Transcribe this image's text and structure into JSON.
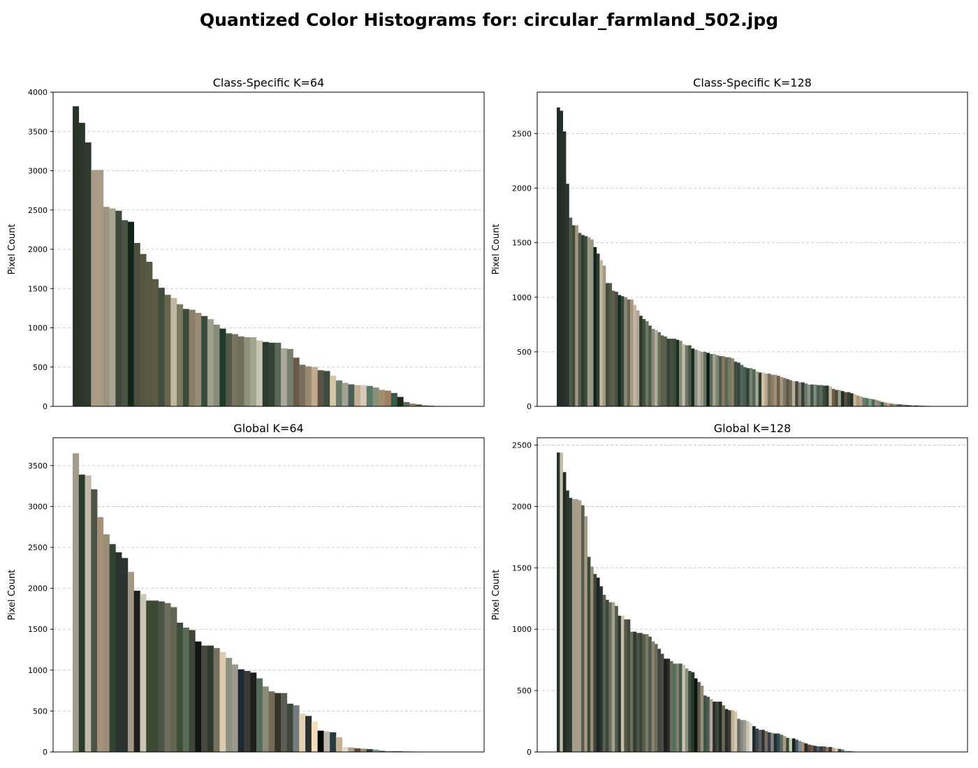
{
  "figure": {
    "title": "Quantized Color Histograms for: circular_farmland_502.jpg"
  },
  "chart_data": [
    {
      "type": "bar",
      "title": "Class-Specific K=64",
      "xlabel": "",
      "ylabel": "Pixel Count",
      "ylim": [
        0,
        4000
      ],
      "yticks": [
        0,
        500,
        1000,
        1500,
        2000,
        2500,
        3000,
        3500,
        4000
      ],
      "xticks_shown": false,
      "grid": "y-dashed",
      "n_bins": 64,
      "values": [
        3820,
        3610,
        3360,
        3010,
        3010,
        2540,
        2520,
        2490,
        2370,
        2350,
        2080,
        1940,
        1840,
        1620,
        1510,
        1420,
        1380,
        1300,
        1240,
        1230,
        1190,
        1150,
        1110,
        1040,
        990,
        930,
        920,
        890,
        880,
        880,
        840,
        820,
        810,
        810,
        740,
        730,
        620,
        530,
        510,
        500,
        460,
        450,
        390,
        330,
        300,
        280,
        270,
        270,
        260,
        240,
        210,
        200,
        170,
        120,
        55,
        35,
        25,
        12,
        8,
        5,
        0,
        0,
        0,
        0
      ],
      "colors": [
        "#27342a",
        "#2a362b",
        "#2f3a2f",
        "#a89c88",
        "#a89c88",
        "#9d9480",
        "#a8a490",
        "#3c4a3a",
        "#4b5440",
        "#12261d",
        "#4f4f3f",
        "#56553f",
        "#56583f",
        "#5c5a45",
        "#3f4e3c",
        "#66664f",
        "#bdb89f",
        "#7a7a62",
        "#3b4a37",
        "#8a8066",
        "#998b73",
        "#384c3c",
        "#a0a090",
        "#8a8a78",
        "#1e3a29",
        "#52594a",
        "#77735f",
        "#6e6e5a",
        "#8f9178",
        "#a0a890",
        "#c8c6b0",
        "#2d3b2e",
        "#334437",
        "#5a6656",
        "#aaa99a",
        "#7a7e6e",
        "#6a5a4a",
        "#7a6e5e",
        "#9a8a74",
        "#c0aa90",
        "#5c5444",
        "#3c4c3c",
        "#d6c6a6",
        "#6a7a6a",
        "#a3a594",
        "#4c5e58",
        "#c4b098",
        "#d8cab8",
        "#5a7a6a",
        "#8a9078",
        "#a48c70",
        "#a08060",
        "#3a5a4a",
        "#1e2a1e",
        "#5a7060",
        "#9a8060",
        "#4a6050",
        "#556a5a",
        "#2a4a3a",
        "#607060",
        "#888888",
        "#999999",
        "#aaaaaa",
        "#bbbbbb"
      ]
    },
    {
      "type": "bar",
      "title": "Class-Specific K=128",
      "xlabel": "",
      "ylabel": "Pixel Count",
      "ylim": [
        0,
        2880
      ],
      "yticks": [
        0,
        500,
        1000,
        1500,
        2000,
        2500
      ],
      "xticks_shown": false,
      "grid": "y-dashed",
      "n_bins": 128,
      "values": [
        2740,
        2710,
        2520,
        2040,
        1730,
        1660,
        1660,
        1590,
        1570,
        1560,
        1550,
        1530,
        1460,
        1400,
        1340,
        1290,
        1130,
        1130,
        1060,
        1050,
        1020,
        1010,
        1000,
        980,
        980,
        930,
        880,
        830,
        800,
        780,
        740,
        710,
        700,
        680,
        650,
        640,
        620,
        620,
        620,
        610,
        600,
        570,
        560,
        560,
        530,
        520,
        510,
        500,
        500,
        490,
        480,
        480,
        470,
        460,
        460,
        450,
        450,
        440,
        410,
        400,
        380,
        360,
        350,
        350,
        340,
        320,
        310,
        310,
        300,
        300,
        290,
        290,
        280,
        270,
        260,
        250,
        240,
        230,
        230,
        220,
        220,
        210,
        200,
        200,
        200,
        195,
        195,
        190,
        190,
        180,
        160,
        150,
        150,
        140,
        130,
        130,
        120,
        110,
        100,
        90,
        80,
        75,
        70,
        65,
        60,
        50,
        40,
        35,
        30,
        25,
        22,
        20,
        18,
        15,
        12,
        10,
        9,
        8,
        7,
        6,
        5,
        4,
        3,
        2,
        1,
        0,
        0,
        0
      ],
      "colors": [
        "#1f2b24",
        "#252f27",
        "#27332a",
        "#2a362c",
        "#4e5a46",
        "#3e4a3a",
        "#a39a86",
        "#57594a",
        "#2e3e33",
        "#3c4b3b",
        "#a19a86",
        "#9a9584",
        "#0f231a",
        "#2b3b30",
        "#c2b8a0",
        "#a49a84",
        "#3c4d3c",
        "#58584a",
        "#5f5f4f",
        "#484f40",
        "#14291f",
        "#34453a",
        "#8e8a78",
        "#6f6652",
        "#a59781",
        "#c4b7a2",
        "#afa792",
        "#2b3a2c",
        "#434f3d",
        "#6d7564",
        "#505b47",
        "#8b8b78",
        "#b2ad9c",
        "#697259",
        "#5e5e4b",
        "#56624f",
        "#354437",
        "#4b4d3a",
        "#3b4c3b",
        "#1a2e22",
        "#888878",
        "#bfbaa6",
        "#6d7462",
        "#4c5846",
        "#162a1f",
        "#8d9081",
        "#b6b4a2",
        "#9c9c8a",
        "#6a7060",
        "#081c14",
        "#5c6a5a",
        "#a1a290",
        "#7e8272",
        "#4d5b4a",
        "#887a62",
        "#5d6650",
        "#6f7b69",
        "#8d7f66",
        "#3e4e40",
        "#38473a",
        "#52665a",
        "#485c50",
        "#2e4236",
        "#74826f",
        "#536553",
        "#a3a895",
        "#2a3b30",
        "#d3c2a0",
        "#b0a694",
        "#7c6e5c",
        "#8c7a64",
        "#9e8f78",
        "#6a5e4e",
        "#a8997f",
        "#7d7565",
        "#5e5848",
        "#6e6e5e",
        "#bbae97",
        "#3d4a3d",
        "#8a8070",
        "#2f4036",
        "#6a7a6a",
        "#8f8f7f",
        "#3e5248",
        "#7e8c7c",
        "#4a5e4e",
        "#5a6a5a",
        "#3a4a3a",
        "#2a3a2e",
        "#c8b89e",
        "#6a6050",
        "#4e4a3a",
        "#a09a8a",
        "#1e2e24",
        "#5a4e3e",
        "#3a3e30",
        "#2a2e24",
        "#cab69a",
        "#a89880",
        "#b6a48a",
        "#6a7e70",
        "#5a7266",
        "#8a9a8c",
        "#4a6a5a",
        "#9a9078",
        "#7a8a7a",
        "#3a5a4a",
        "#a08a70",
        "#c0a080",
        "#8a7060",
        "#9e9888",
        "#5e7064",
        "#4a5a50",
        "#6e8270",
        "#3a4e42",
        "#2a3e34",
        "#7a9080",
        "#1e3428",
        "#506858",
        "#3e564a",
        "#607a6a",
        "#2e463a",
        "#4e6a5a",
        "#365244",
        "#5a7868",
        "#8a8a8a",
        "#999999",
        "#aaaaaa"
      ]
    },
    {
      "type": "bar",
      "title": "Global K=64",
      "xlabel": "",
      "ylabel": "Pixel Count",
      "ylim": [
        0,
        3840
      ],
      "yticks": [
        0,
        500,
        1000,
        1500,
        2000,
        2500,
        3000,
        3500
      ],
      "xticks_shown": false,
      "grid": "y-dashed",
      "n_bins": 64,
      "values": [
        3650,
        3390,
        3380,
        3210,
        2870,
        2660,
        2540,
        2440,
        2370,
        2200,
        1970,
        1930,
        1850,
        1850,
        1840,
        1820,
        1770,
        1580,
        1520,
        1490,
        1350,
        1300,
        1300,
        1270,
        1220,
        1150,
        1070,
        1010,
        990,
        970,
        900,
        800,
        740,
        720,
        720,
        590,
        570,
        470,
        440,
        370,
        260,
        250,
        240,
        180,
        60,
        55,
        45,
        40,
        35,
        30,
        15,
        12,
        10,
        8,
        6,
        5,
        4,
        3,
        0,
        0,
        0,
        0,
        0,
        0
      ],
      "colors": [
        "#a39a88",
        "#283a2a",
        "#c2b9a6",
        "#4c5446",
        "#a6927a",
        "#9a8e78",
        "#324433",
        "#2a3330",
        "#2c3430",
        "#a39882",
        "#1b1f1f",
        "#cdc6b4",
        "#3c4a34",
        "#3c4a34",
        "#4c5246",
        "#6f6e5c",
        "#646453",
        "#3b4d3b",
        "#596c54",
        "#3e4638",
        "#101512",
        "#4a483e",
        "#2d3b2c",
        "#77705e",
        "#dcccae",
        "#909082",
        "#9b9a8c",
        "#1e2a32",
        "#3a3a38",
        "#1f201d",
        "#566b59",
        "#8a8a78",
        "#786a58",
        "#33332c",
        "#5c5c54",
        "#3e463c",
        "#737d7c",
        "#e5d2b3",
        "#2c302c",
        "#f4ddbc",
        "#040706",
        "#bcb6ac",
        "#283c40",
        "#c7b193",
        "#e6dccc",
        "#b29f84",
        "#5a4b3d",
        "#a08a6e",
        "#2c4238",
        "#8a9a90",
        "#5c6c64",
        "#a0a8a0",
        "#707864",
        "#3c5448",
        "#4e5e56",
        "#2a3a30",
        "#6a7a70",
        "#5c5444",
        "#888888",
        "#999999",
        "#aaaaaa",
        "#bbbbbb",
        "#cccccc",
        "#dddddd"
      ]
    },
    {
      "type": "bar",
      "title": "Global K=128",
      "xlabel": "",
      "ylabel": "Pixel Count",
      "ylim": [
        0,
        2560
      ],
      "yticks": [
        0,
        500,
        1000,
        1500,
        2000,
        2500
      ],
      "xticks_shown": false,
      "grid": "y-dashed",
      "n_bins": 128,
      "values": [
        2440,
        2440,
        2280,
        2130,
        2070,
        2060,
        2060,
        2050,
        2010,
        1920,
        1590,
        1510,
        1450,
        1420,
        1350,
        1280,
        1240,
        1220,
        1220,
        1190,
        1110,
        1110,
        1080,
        1080,
        980,
        980,
        970,
        970,
        960,
        960,
        940,
        900,
        880,
        840,
        800,
        760,
        760,
        740,
        720,
        720,
        720,
        710,
        680,
        660,
        650,
        600,
        570,
        540,
        460,
        450,
        430,
        410,
        410,
        410,
        380,
        350,
        340,
        340,
        330,
        270,
        260,
        260,
        250,
        240,
        210,
        190,
        180,
        180,
        170,
        160,
        155,
        150,
        150,
        140,
        130,
        115,
        110,
        110,
        100,
        90,
        80,
        70,
        60,
        55,
        50,
        45,
        45,
        45,
        40,
        40,
        35,
        30,
        25,
        20,
        10,
        8,
        5,
        3,
        2,
        1,
        1,
        0,
        0,
        0,
        0,
        0,
        0,
        0,
        0,
        0,
        0,
        0,
        0,
        0,
        0,
        0,
        0,
        0,
        0,
        0,
        0,
        0,
        0,
        0,
        0,
        0,
        0,
        0
      ],
      "colors": [
        "#253527",
        "#c4bca8",
        "#1f2a25",
        "#2a3530",
        "#2c3a33",
        "#a59c89",
        "#a69e8a",
        "#a79f8b",
        "#5d5c4b",
        "#a39a85",
        "#3a4a38",
        "#9a8e76",
        "#3b4636",
        "#1c262a",
        "#2b3331",
        "#58604f",
        "#3a4a3b",
        "#6e6c5a",
        "#a6a292",
        "#565c4c",
        "#2a372a",
        "#c6c0ac",
        "#5b5a4a",
        "#3e4a3c",
        "#6e6d5d",
        "#2f3b2e",
        "#4c5447",
        "#3a463a",
        "#5c5c4c",
        "#7a7a6a",
        "#54584c",
        "#888070",
        "#6c6c5c",
        "#3e463e",
        "#4a4a42",
        "#1c1c1c",
        "#2a2e2a",
        "#6a6e5e",
        "#566a58",
        "#808070",
        "#4a5a48",
        "#c8c4b4",
        "#8f8c7c",
        "#3c4e3c",
        "#263628",
        "#0c1210",
        "#5c5a4c",
        "#9a8c7a",
        "#3e5442",
        "#4e5c52",
        "#b0a898",
        "#2e2e28",
        "#3c4a44",
        "#1e2a22",
        "#6e6a58",
        "#2a2a2a",
        "#3a3e3a",
        "#c0b094",
        "#d4c8ac",
        "#6a6e66",
        "#8a8a82",
        "#9c9a92",
        "#cbc4b4",
        "#e4dccc",
        "#1e2a34",
        "#3e4448",
        "#5a5e60",
        "#2c3238",
        "#7a6e5a",
        "#384048",
        "#8a8478",
        "#1e2e3a",
        "#384a4e",
        "#5a6c64",
        "#b09a80",
        "#3c4a3c",
        "#c4d0b8",
        "#1a1e1c",
        "#405a5c",
        "#7c8c94",
        "#a8906c",
        "#2e2a24",
        "#5a4a3a",
        "#6c5a48",
        "#2a3a3e",
        "#4a5c60",
        "#3a3a3a",
        "#5c4e42",
        "#8a7258",
        "#2e3a3a",
        "#d4a478",
        "#d8c8b0",
        "#3a4c40",
        "#6a7a70",
        "#a0b0a8",
        "#7a8a80",
        "#3c4c44",
        "#5a6a60",
        "#9aa89c",
        "#4a5a50",
        "#2a3a30",
        "#888888",
        "#999999",
        "#aaaaaa",
        "#bbbbbb",
        "#cccccc",
        "#dddddd",
        "#8a8a8a",
        "#9a9a9a",
        "#aaaaaa",
        "#bababa",
        "#cacaca",
        "#dadada",
        "#8b8b8b",
        "#9b9b9b",
        "#ababab",
        "#bbbbbb",
        "#cbcbcb",
        "#dbdbdb",
        "#8c8c8c",
        "#9c9c9c",
        "#acacac",
        "#bcbcbc",
        "#cccccc",
        "#dcdcdc",
        "#8d8d8d",
        "#9d9d9d",
        "#adadad"
      ]
    }
  ]
}
